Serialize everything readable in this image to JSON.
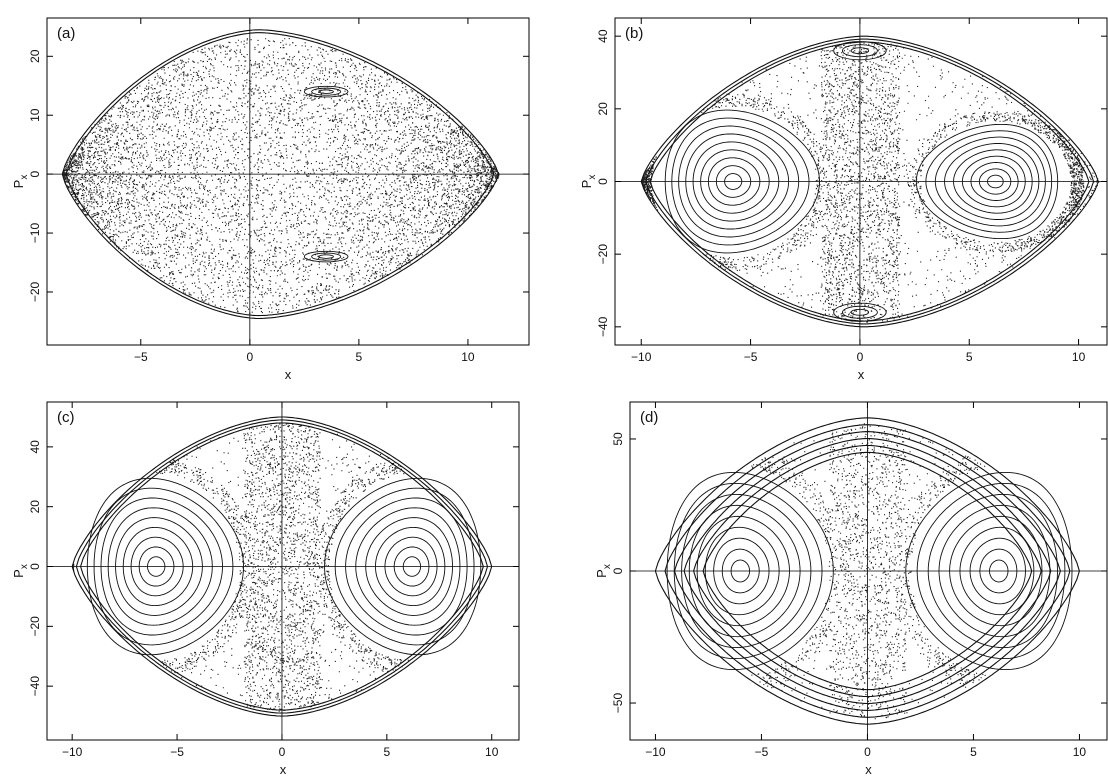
{
  "chart_data": [
    {
      "type": "scatter",
      "panel_label": "(a)",
      "xlabel": "x",
      "ylabel": "P",
      "ylabel_subscript": "x",
      "xlim": [
        -9.3,
        12.8
      ],
      "ylim": [
        -29,
        26.5
      ],
      "x_ticks": [
        -5,
        0,
        5,
        10
      ],
      "y_ticks": [
        -20,
        -10,
        0,
        10,
        20
      ],
      "boundary": {
        "x_min": -8.6,
        "x_max": 11.4,
        "p_max": 24.5,
        "x_at_p_max": 0.4
      },
      "regular_islands": [],
      "small_islands": [
        {
          "x": 3.5,
          "p": 14,
          "rx": 1.0,
          "rp": 0.9
        },
        {
          "x": 3.5,
          "p": -14,
          "rx": 1.0,
          "rp": 0.9
        }
      ],
      "chaos_density": 1.0
    },
    {
      "type": "scatter",
      "panel_label": "(b)",
      "xlabel": "x",
      "ylabel": "P",
      "ylabel_subscript": "x",
      "xlim": [
        -11.2,
        11.3
      ],
      "ylim": [
        -45,
        45
      ],
      "x_ticks": [
        -10,
        -5,
        0,
        5,
        10
      ],
      "y_ticks": [
        -40,
        -20,
        0,
        20,
        40
      ],
      "boundary": {
        "x_min": -10.0,
        "x_max": 10.9,
        "p_max": 40,
        "x_at_p_max": 0.2
      },
      "regular_islands": [
        {
          "x": -5.8,
          "p": 0,
          "rx": 3.6,
          "rp": 20
        },
        {
          "x": 6.2,
          "p": 0,
          "rx": 3.3,
          "rp": 16
        }
      ],
      "small_islands": [
        {
          "x": 0,
          "p": 36,
          "rx": 1.2,
          "rp": 2.5
        },
        {
          "x": 0,
          "p": -36,
          "rx": 1.2,
          "rp": 2.5
        }
      ],
      "chaos_density": 0.55
    },
    {
      "type": "scatter",
      "panel_label": "(c)",
      "xlabel": "x",
      "ylabel": "P",
      "ylabel_subscript": "x",
      "xlim": [
        -11.2,
        11.3
      ],
      "ylim": [
        -58,
        55
      ],
      "x_ticks": [
        -10,
        -5,
        0,
        5,
        10
      ],
      "y_ticks": [
        -40,
        -20,
        0,
        20,
        40
      ],
      "boundary": {
        "x_min": -10.0,
        "x_max": 10.0,
        "p_max": 50,
        "x_at_p_max": 0.0
      },
      "regular_islands": [
        {
          "x": -6.0,
          "p": 0,
          "rx": 3.8,
          "rp": 30
        },
        {
          "x": 6.2,
          "p": 0,
          "rx": 3.8,
          "rp": 30
        }
      ],
      "small_islands": [],
      "chaos_density": 0.35
    },
    {
      "type": "scatter",
      "panel_label": "(d)",
      "xlabel": "x",
      "ylabel": "P",
      "ylabel_subscript": "x",
      "xlim": [
        -11.2,
        11.3
      ],
      "ylim": [
        -64,
        64
      ],
      "x_ticks": [
        -10,
        -5,
        0,
        5,
        10
      ],
      "y_ticks": [
        -50,
        0,
        50
      ],
      "boundary": {
        "x_min": -10.0,
        "x_max": 10.0,
        "p_max": 58,
        "x_at_p_max": 0.0
      },
      "regular_islands": [
        {
          "x": -6.0,
          "p": 0,
          "rx": 4.0,
          "rp": 38
        },
        {
          "x": 6.2,
          "p": 0,
          "rx": 4.0,
          "rp": 38
        }
      ],
      "small_islands": [],
      "chaos_density": 0.2
    }
  ]
}
